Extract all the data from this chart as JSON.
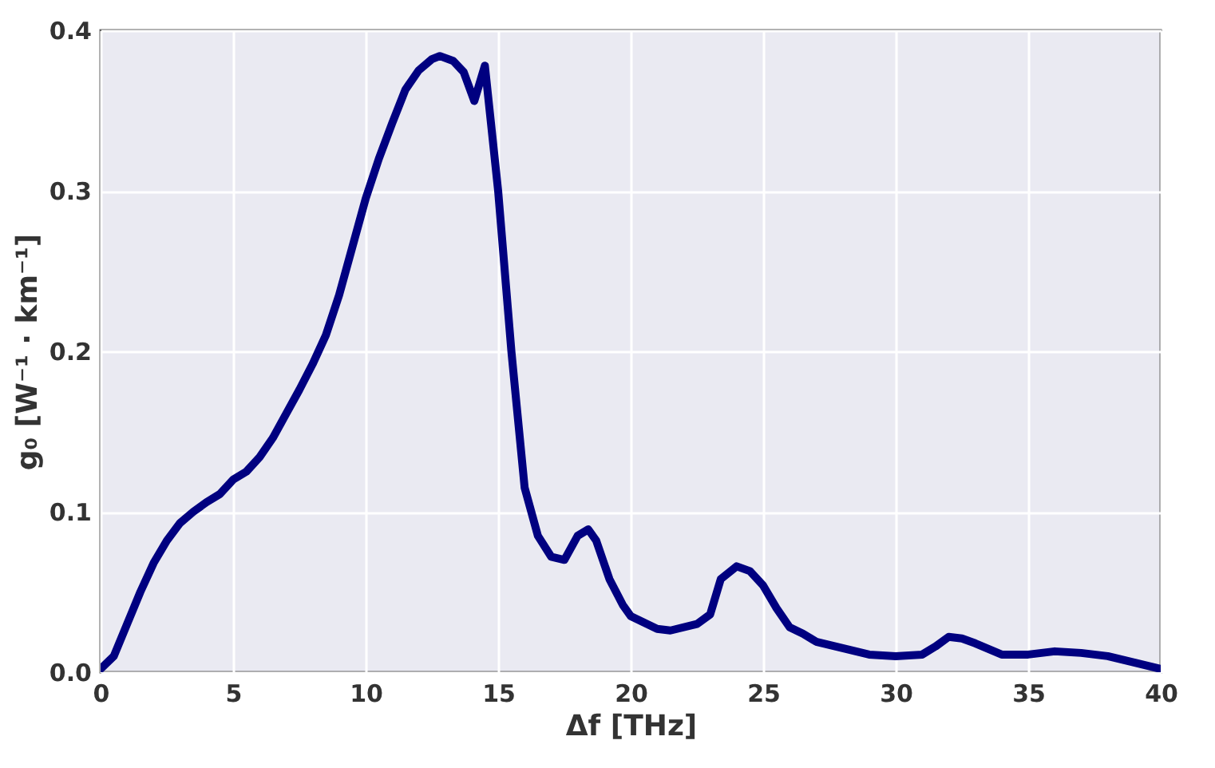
{
  "chart_data": {
    "type": "line",
    "xlabel": "Δf [THz]",
    "ylabel": "g₀ [W⁻¹ · km⁻¹]",
    "xlim": [
      0,
      40
    ],
    "ylim": [
      0,
      0.4
    ],
    "xticks": [
      0,
      5,
      10,
      15,
      20,
      25,
      30,
      35,
      40
    ],
    "yticks": [
      {
        "value": 0,
        "label": "0.0"
      },
      0.1,
      0.2,
      0.3,
      0.4
    ],
    "grid": true,
    "x": [
      0,
      0.5,
      1,
      1.5,
      2,
      2.5,
      3,
      3.5,
      4,
      4.5,
      5,
      5.5,
      6,
      6.5,
      7,
      7.5,
      8,
      8.5,
      9,
      9.5,
      10,
      10.5,
      11,
      11.5,
      12,
      12.5,
      12.8,
      13.3,
      13.7,
      14.1,
      14.5,
      15,
      15.5,
      16,
      16.5,
      17,
      17.5,
      18,
      18.4,
      18.7,
      19.2,
      19.7,
      20,
      21,
      21.5,
      22.5,
      23,
      23.4,
      24,
      24.5,
      25,
      25.5,
      26,
      26.5,
      27,
      28,
      29,
      30,
      31,
      31.5,
      32,
      32.5,
      33,
      34,
      35,
      36,
      37,
      38,
      39,
      40
    ],
    "series": [
      {
        "color": "#000080",
        "values": [
          0.002,
          0.01,
          0.03,
          0.05,
          0.068,
          0.082,
          0.093,
          0.1,
          0.106,
          0.111,
          0.12,
          0.125,
          0.134,
          0.146,
          0.161,
          0.176,
          0.192,
          0.21,
          0.235,
          0.265,
          0.295,
          0.32,
          0.342,
          0.363,
          0.375,
          0.382,
          0.384,
          0.381,
          0.374,
          0.356,
          0.378,
          0.3,
          0.2,
          0.115,
          0.085,
          0.072,
          0.07,
          0.085,
          0.089,
          0.082,
          0.058,
          0.042,
          0.035,
          0.027,
          0.026,
          0.03,
          0.036,
          0.058,
          0.066,
          0.063,
          0.054,
          0.04,
          0.028,
          0.024,
          0.019,
          0.015,
          0.011,
          0.01,
          0.011,
          0.016,
          0.022,
          0.021,
          0.018,
          0.011,
          0.011,
          0.013,
          0.012,
          0.01,
          0.006,
          0.002
        ]
      }
    ]
  }
}
